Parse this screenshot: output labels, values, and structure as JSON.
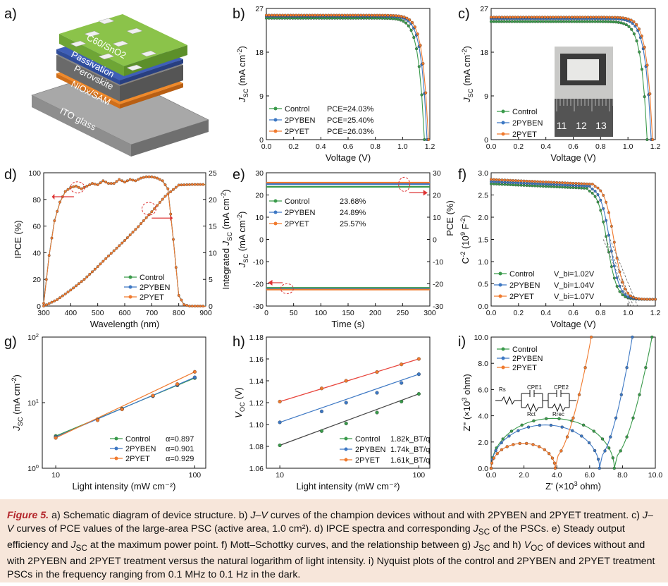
{
  "panels": {
    "a": {
      "label": "a)",
      "layers": [
        "C60/SnO2",
        "Passivation",
        "Perovskite",
        "NiOx/SAM",
        "ITO glass"
      ],
      "layer_colors": [
        "#8bc34a",
        "#3f5fb8",
        "#7d7d7d",
        "#f08a2a",
        "#a9a9a9"
      ]
    },
    "b": {
      "label": "b)",
      "chart_data": {
        "type": "line",
        "xlabel": "Voltage (V)",
        "ylabel": "J_SC (mA cm^-2)",
        "xlim": [
          0,
          1.2
        ],
        "ylim": [
          0,
          27
        ],
        "xticks": [
          "0.0",
          "0.2",
          "0.4",
          "0.6",
          "0.8",
          "1.0",
          "1.2"
        ],
        "yticks": [
          "0",
          "9",
          "18",
          "27"
        ],
        "legend_placement": "bottom-left",
        "series": [
          {
            "name": "Control",
            "annotation": "PCE=24.03%",
            "color": "#3a9a4b",
            "jsc": 25.0,
            "voc": 1.16
          },
          {
            "name": "2PYBEN",
            "annotation": "PCE=25.40%",
            "color": "#3d78c4",
            "jsc": 25.4,
            "voc": 1.18
          },
          {
            "name": "2PYET",
            "annotation": "PCE=26.03%",
            "color": "#f07a2e",
            "jsc": 25.6,
            "voc": 1.19
          }
        ]
      }
    },
    "c": {
      "label": "c)",
      "chart_data": {
        "type": "line",
        "xlabel": "Voltage (V)",
        "ylabel": "J_SC (mA cm^-2)",
        "xlim": [
          0,
          1.2
        ],
        "ylim": [
          0,
          27
        ],
        "xticks": [
          "0.0",
          "0.2",
          "0.4",
          "0.6",
          "0.8",
          "1.0",
          "1.2"
        ],
        "yticks": [
          "0",
          "9",
          "18",
          "27"
        ],
        "legend_placement": "left",
        "series": [
          {
            "name": "Control",
            "color": "#3a9a4b",
            "jsc": 24.3,
            "voc": 1.14
          },
          {
            "name": "2PYBEN",
            "color": "#3d78c4",
            "jsc": 24.9,
            "voc": 1.17
          },
          {
            "name": "2PYET",
            "color": "#f07a2e",
            "jsc": 25.2,
            "voc": 1.18
          }
        ],
        "inset_ruler_numbers": [
          "11",
          "12",
          "13"
        ]
      }
    },
    "d": {
      "label": "d)",
      "chart_data": {
        "type": "line",
        "xlabel": "Wavelength (nm)",
        "ylabel": "IPCE (%)",
        "ylabel_right": "Integrated J_SC (mA cm^-2)",
        "xlim": [
          300,
          900
        ],
        "ylim": [
          0,
          100
        ],
        "ylim_right": [
          0,
          25
        ],
        "xticks": [
          "300",
          "400",
          "500",
          "600",
          "700",
          "800",
          "900"
        ],
        "yticks": [
          "0",
          "20",
          "40",
          "60",
          "80",
          "100"
        ],
        "yticks_right": [
          "0",
          "5",
          "10",
          "15",
          "20",
          "25"
        ],
        "legend_placement": "bottom-right",
        "series": [
          {
            "name": "Control",
            "color": "#3a9a4b"
          },
          {
            "name": "2PYBEN",
            "color": "#3d78c4"
          },
          {
            "name": "2PYET",
            "color": "#f07a2e"
          }
        ],
        "ipce": {
          "x": [
            300,
            320,
            340,
            360,
            380,
            400,
            420,
            440,
            460,
            480,
            500,
            520,
            540,
            560,
            580,
            600,
            620,
            640,
            660,
            680,
            700,
            720,
            740,
            760,
            780,
            800,
            820,
            840,
            860,
            880,
            900
          ],
          "y": [
            2,
            38,
            64,
            78,
            86,
            89,
            90,
            88,
            90,
            92,
            91,
            94,
            92,
            92,
            95,
            93,
            95,
            94,
            96,
            97,
            97,
            96,
            94,
            88,
            50,
            8,
            1,
            0,
            0,
            0,
            0
          ]
        },
        "integrated_jsc": {
          "x": [
            300,
            350,
            400,
            450,
            500,
            550,
            600,
            650,
            700,
            750,
            800,
            850,
            900
          ],
          "y": [
            0,
            1.2,
            3.0,
            5.0,
            7.4,
            9.9,
            12.3,
            14.9,
            17.7,
            20.6,
            22.7,
            22.8,
            22.8
          ]
        }
      }
    },
    "e": {
      "label": "e)",
      "chart_data": {
        "type": "line",
        "xlabel": "Time (s)",
        "ylabel": "J_SC (mA cm^-2)",
        "ylabel_right": "PCE (%)",
        "xlim": [
          0,
          300
        ],
        "ylim": [
          -30,
          30
        ],
        "ylim_right": [
          -30,
          30
        ],
        "xticks": [
          "0",
          "50",
          "100",
          "150",
          "200",
          "250",
          "300"
        ],
        "yticks": [
          "-30",
          "-20",
          "-10",
          "0",
          "10",
          "20",
          "30"
        ],
        "yticks_right": [
          "-30",
          "-20",
          "-10",
          "0",
          "10",
          "20",
          "30"
        ],
        "legend_placement": "top-left",
        "series": [
          {
            "name": "Control",
            "annotation": "23.68%",
            "color": "#3a9a4b",
            "pce": 23.68,
            "jsc": -21.8
          },
          {
            "name": "2PYBEN",
            "annotation": "24.89%",
            "color": "#3d78c4",
            "pce": 24.89,
            "jsc": -22.3
          },
          {
            "name": "2PYET",
            "annotation": "25.57%",
            "color": "#f07a2e",
            "pce": 25.57,
            "jsc": -22.6
          }
        ]
      }
    },
    "f": {
      "label": "f)",
      "chart_data": {
        "type": "line",
        "xlabel": "Voltage (V)",
        "ylabel": "C^-2 (10^9 F^-2)",
        "xlim": [
          0,
          1.2
        ],
        "ylim": [
          0,
          3.0
        ],
        "xticks": [
          "0.0",
          "0.2",
          "0.4",
          "0.6",
          "0.8",
          "1.0",
          "1.2"
        ],
        "yticks": [
          "0.0",
          "0.5",
          "1.0",
          "1.5",
          "2.0",
          "2.5",
          "3.0"
        ],
        "legend_placement": "bottom-left",
        "series": [
          {
            "name": "Control",
            "annotation": "V_bi=1.02V",
            "color": "#3a9a4b",
            "plateau": 2.75,
            "vbi": 1.02
          },
          {
            "name": "2PYBEN",
            "annotation": "V_bi=1.04V",
            "color": "#3d78c4",
            "plateau": 2.8,
            "vbi": 1.04
          },
          {
            "name": "2PYET",
            "annotation": "V_bi=1.07V",
            "color": "#f07a2e",
            "plateau": 2.85,
            "vbi": 1.07
          }
        ]
      }
    },
    "g": {
      "label": "g)",
      "chart_data": {
        "type": "scatter",
        "xlabel": "Light intensity (mW cm^-2)",
        "ylabel": "J_SC (mA cm^-2)",
        "xscale": "log",
        "yscale": "log",
        "xlim": [
          10,
          100
        ],
        "ylim": [
          1,
          100
        ],
        "xticks": [
          "10",
          "100"
        ],
        "yticks": [
          "10^0",
          "10^1",
          "10^2"
        ],
        "legend_placement": "bottom-right",
        "x": [
          10,
          20,
          30,
          50,
          75,
          100
        ],
        "series": [
          {
            "name": "Control",
            "annotation": "α=0.897",
            "color": "#3a9a4b",
            "values": [
              3.1,
              5.6,
              8.1,
              12.6,
              18.4,
              23.7
            ]
          },
          {
            "name": "2PYBEN",
            "annotation": "α=0.901",
            "color": "#3d78c4",
            "values": [
              3.0,
              5.5,
              8.0,
              12.6,
              18.6,
              24.3
            ]
          },
          {
            "name": "2PYET",
            "annotation": "α=0.929",
            "color": "#f07a2e",
            "values": [
              2.9,
              5.4,
              7.9,
              12.8,
              19.2,
              29.5
            ]
          }
        ]
      }
    },
    "h": {
      "label": "h)",
      "chart_data": {
        "type": "scatter",
        "xlabel": "Light intensity (mW cm^-2)",
        "ylabel": "V_OC (V)",
        "xscale": "log",
        "xlim": [
          10,
          100
        ],
        "ylim": [
          1.06,
          1.18
        ],
        "xticks": [
          "10",
          "100"
        ],
        "yticks": [
          "1.06",
          "1.08",
          "1.10",
          "1.12",
          "1.14",
          "1.16",
          "1.18"
        ],
        "legend_placement": "bottom-right",
        "x": [
          10,
          20,
          30,
          50,
          75,
          100
        ],
        "series": [
          {
            "name": "Control",
            "annotation": "1.82k_BT/q",
            "color": "#3a9a4b",
            "values": [
              1.081,
              1.094,
              1.101,
              1.111,
              1.121,
              1.128
            ]
          },
          {
            "name": "2PYBEN",
            "annotation": "1.74k_BT/q",
            "color": "#3d78c4",
            "values": [
              1.102,
              1.112,
              1.12,
              1.129,
              1.138,
              1.146
            ]
          },
          {
            "name": "2PYET",
            "annotation": "1.61k_BT/q",
            "color": "#f07a2e",
            "values": [
              1.121,
              1.133,
              1.14,
              1.148,
              1.155,
              1.16
            ]
          }
        ]
      }
    },
    "i": {
      "label": "i)",
      "chart_data": {
        "type": "scatter",
        "xlabel": "Z' (×10^3 ohm)",
        "ylabel": "Z'' (×10^3 ohm)",
        "xlim": [
          0,
          10
        ],
        "ylim": [
          0,
          10
        ],
        "xticks": [
          "0.0",
          "2.0",
          "4.0",
          "6.0",
          "8.0",
          "10.0"
        ],
        "yticks": [
          "0.0",
          "2.0",
          "4.0",
          "6.0",
          "8.0",
          "10.0"
        ],
        "legend_placement": "top-left",
        "series": [
          {
            "name": "Control",
            "color": "#3a9a4b",
            "arc_end": 7.5,
            "arc_height": 3.8,
            "tail_to": 9.8
          },
          {
            "name": "2PYBEN",
            "color": "#3d78c4",
            "arc_end": 6.6,
            "arc_height": 3.3,
            "tail_to": 8.6
          },
          {
            "name": "2PYET",
            "color": "#f07a2e",
            "arc_end": 3.9,
            "arc_height": 1.9,
            "tail_to": 6.1
          }
        ],
        "circuit_labels": [
          "Rs",
          "CPE1",
          "CPE2",
          "Rct",
          "Rrec"
        ]
      }
    }
  },
  "caption": {
    "label": "Figure 5.",
    "parts": [
      " a) Schematic diagram of device structure. b) ",
      "J–V",
      " curves of the champion devices without and with 2PYBEN and 2PYET treatment. c) ",
      "J–V",
      " curves of PCE values of the large-area PSC (active area, 1.0 cm²). d) IPCE spectra and corresponding ",
      "J",
      "SC",
      " of the PSCs. e) Steady output efficiency and ",
      "J",
      "SC",
      " at the maximum power point. f) Mott–Schottky curves, and the relationship between g) ",
      "J",
      "SC",
      " and h) ",
      "V",
      "OC",
      " of devices without and with 2PYEBN and 2PYET treatment versus the natural logarithm of light intensity. i) Nyquist plots of the control and 2PYBEN and 2PYET treatment PSCs in the frequency ranging from 0.1 MHz to 0.1 Hz in the dark."
    ]
  }
}
